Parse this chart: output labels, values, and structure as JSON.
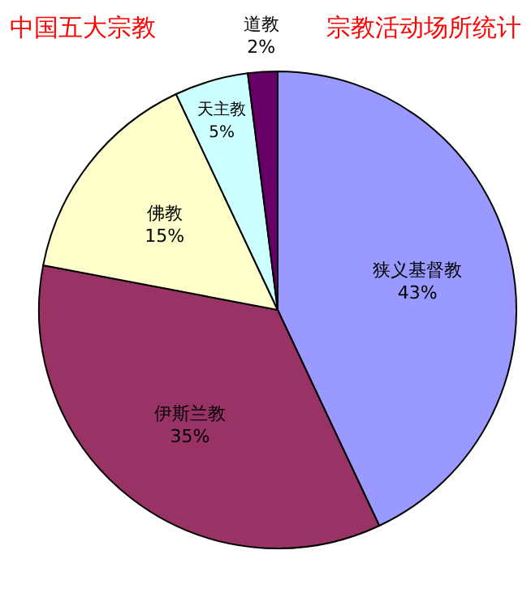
{
  "chart_data": {
    "type": "pie",
    "title": "中国五大宗教",
    "subtitle": "宗教活动场所统计",
    "categories": [
      "狭义基督教",
      "伊斯兰教",
      "佛教",
      "天主教",
      "道教"
    ],
    "values": [
      43,
      35,
      15,
      5,
      2
    ],
    "colors": [
      "#9999ff",
      "#993366",
      "#ffffcc",
      "#ccffff",
      "#660066"
    ],
    "value_labels": [
      "43%",
      "35%",
      "15%",
      "5%",
      "2%"
    ],
    "legend": false
  }
}
